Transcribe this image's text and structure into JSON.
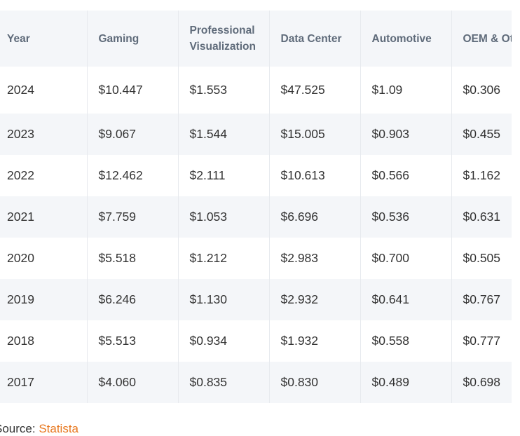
{
  "table": {
    "headers": [
      "Year",
      "Gaming",
      "Professional\nVisualization",
      "Data Center",
      "Automotive",
      "OEM & Ot"
    ],
    "header_lines": {
      "year": "Year",
      "gaming": "Gaming",
      "pro_line1": "Professional",
      "pro_line2": "Visualization",
      "data_center": "Data Center",
      "automotive": "Automotive",
      "oem": "OEM & Ot"
    },
    "rows": [
      [
        "2024",
        "$10.447",
        "$1.553",
        "$47.525",
        "$1.09",
        "$0.306"
      ],
      [
        "2023",
        "$9.067",
        "$1.544",
        "$15.005",
        "$0.903",
        "$0.455"
      ],
      [
        "2022",
        "$12.462",
        "$2.111",
        "$10.613",
        "$0.566",
        "$1.162"
      ],
      [
        "2021",
        "$7.759",
        "$1.053",
        "$6.696",
        "$0.536",
        "$0.631"
      ],
      [
        "2020",
        "$5.518",
        "$1.212",
        "$2.983",
        "$0.700",
        "$0.505"
      ],
      [
        "2019",
        "$6.246",
        "$1.130",
        "$2.932",
        "$0.641",
        "$0.767"
      ],
      [
        "2018",
        "$5.513",
        "$0.934",
        "$1.932",
        "$0.558",
        "$0.777"
      ],
      [
        "2017",
        "$4.060",
        "$0.835",
        "$0.830",
        "$0.489",
        "$0.698"
      ]
    ]
  },
  "source": {
    "prefix": "Source: ",
    "link_label": "Statista"
  },
  "colors": {
    "header_text": "#5f6b7a",
    "stripe": "#f4f6f9",
    "link": "#e8781f"
  }
}
